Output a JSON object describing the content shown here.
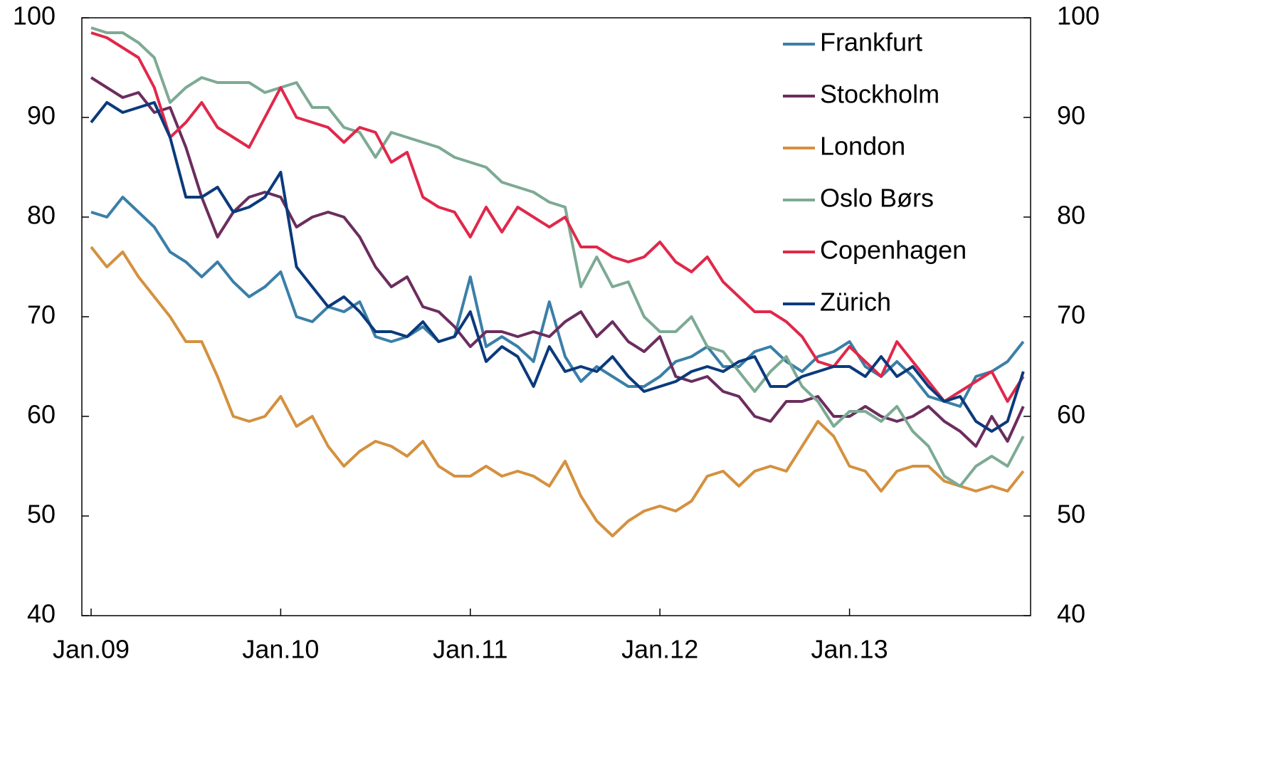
{
  "chart_data": {
    "type": "line",
    "categories": [
      "Jan.09",
      null,
      null,
      null,
      null,
      null,
      null,
      null,
      null,
      null,
      null,
      null,
      "Jan.10",
      null,
      null,
      null,
      null,
      null,
      null,
      null,
      null,
      null,
      null,
      null,
      "Jan.11",
      null,
      null,
      null,
      null,
      null,
      null,
      null,
      null,
      null,
      null,
      null,
      "Jan.12",
      null,
      null,
      null,
      null,
      null,
      null,
      null,
      null,
      null,
      null,
      null,
      "Jan.13",
      null,
      null,
      null,
      null,
      null,
      null,
      null,
      null,
      null,
      null,
      null
    ],
    "series": [
      {
        "name": "Frankfurt",
        "color": "#3a7fa8",
        "values": [
          80.5,
          80,
          82,
          80.5,
          79,
          76.5,
          75.5,
          74,
          75.5,
          73.5,
          72,
          73,
          74.5,
          70,
          69.5,
          71,
          70.5,
          71.5,
          68,
          67.5,
          68,
          69,
          67.5,
          68,
          74,
          67,
          68,
          67,
          65.5,
          71.5,
          66,
          63.5,
          65,
          64,
          63,
          63,
          64,
          65.5,
          66,
          67,
          65,
          65,
          66.5,
          67,
          65.5,
          64.5,
          66,
          66.5,
          67.5,
          65,
          64,
          65.5,
          64,
          62,
          61.5,
          61,
          64,
          64.5,
          65.5,
          67.5
        ]
      },
      {
        "name": "Stockholm",
        "color": "#6b2d5e",
        "values": [
          94,
          93,
          92,
          92.5,
          90.5,
          91,
          87,
          82,
          78,
          80.5,
          82,
          82.5,
          82,
          79,
          80,
          80.5,
          80,
          78,
          75,
          73,
          74,
          71,
          70.5,
          69,
          67,
          68.5,
          68.5,
          68,
          68.5,
          68,
          69.5,
          70.5,
          68,
          69.5,
          67.5,
          66.5,
          68,
          64,
          63.5,
          64,
          62.5,
          62,
          60,
          59.5,
          61.5,
          61.5,
          62,
          60,
          60,
          61,
          60,
          59.5,
          60,
          61,
          59.5,
          58.5,
          57,
          60,
          57.5,
          61
        ]
      },
      {
        "name": "London",
        "color": "#d4913f",
        "values": [
          77,
          75,
          76.5,
          74,
          72,
          70,
          67.5,
          67.5,
          64,
          60,
          59.5,
          60,
          62,
          59,
          60,
          57,
          55,
          56.5,
          57.5,
          57,
          56,
          57.5,
          55,
          54,
          54,
          55,
          54,
          54.5,
          54,
          53,
          55.5,
          52,
          49.5,
          48,
          49.5,
          50.5,
          51,
          50.5,
          51.5,
          54,
          54.5,
          53,
          54.5,
          55,
          54.5,
          57,
          59.5,
          58,
          55,
          54.5,
          52.5,
          54.5,
          55,
          55,
          53.5,
          53,
          52.5,
          53,
          52.5,
          54.5
        ]
      },
      {
        "name": "Oslo Børs",
        "color": "#7daa94",
        "values": [
          99,
          98.5,
          98.5,
          97.5,
          96,
          91.5,
          93,
          94,
          93.5,
          93.5,
          93.5,
          92.5,
          93,
          93.5,
          91,
          91,
          89,
          88.5,
          86,
          88.5,
          88,
          87.5,
          87,
          86,
          85.5,
          85,
          83.5,
          83,
          82.5,
          81.5,
          81,
          73,
          76,
          73,
          73.5,
          70,
          68.5,
          68.5,
          70,
          67,
          66.5,
          64.5,
          62.5,
          64.5,
          66,
          63,
          61.5,
          59,
          60.5,
          60.5,
          59.5,
          61,
          58.5,
          57,
          54,
          53,
          55,
          56,
          55,
          58
        ]
      },
      {
        "name": "Copenhagen",
        "color": "#e0284a",
        "values": [
          98.5,
          98,
          97,
          96,
          93,
          88,
          89.5,
          91.5,
          89,
          88,
          87,
          90,
          93,
          90,
          89.5,
          89,
          87.5,
          89,
          88.5,
          85.5,
          86.5,
          82,
          81,
          80.5,
          78,
          81,
          78.5,
          81,
          80,
          79,
          80,
          77,
          77,
          76,
          75.5,
          76,
          77.5,
          75.5,
          74.5,
          76,
          73.5,
          72,
          70.5,
          70.5,
          69.5,
          68,
          65.5,
          65,
          67,
          65.5,
          64,
          67.5,
          65.5,
          63.5,
          61.5,
          62.5,
          63.5,
          64.5,
          61.5,
          64
        ]
      },
      {
        "name": "Zürich",
        "color": "#0b3a7c",
        "values": [
          89.5,
          91.5,
          90.5,
          91,
          91.5,
          88,
          82,
          82,
          83,
          80.5,
          81,
          82,
          84.5,
          75,
          73,
          71,
          72,
          70.5,
          68.5,
          68.5,
          68,
          69.5,
          67.5,
          68,
          70.5,
          65.5,
          67,
          66,
          63,
          67,
          64.5,
          65,
          64.5,
          66,
          64,
          62.5,
          63,
          63.5,
          64.5,
          65,
          64.5,
          65.5,
          66,
          63,
          63,
          64,
          64.5,
          65,
          65,
          64,
          66,
          64,
          65,
          63,
          61.5,
          62,
          59.5,
          58.5,
          59.5,
          64.5
        ]
      }
    ],
    "ylim": [
      40,
      100
    ],
    "yticks": [
      40,
      50,
      60,
      70,
      80,
      90,
      100
    ],
    "y2lim": [
      40,
      100
    ],
    "y2ticks": [
      40,
      50,
      60,
      70,
      80,
      90,
      100
    ],
    "legend": "top-right"
  }
}
